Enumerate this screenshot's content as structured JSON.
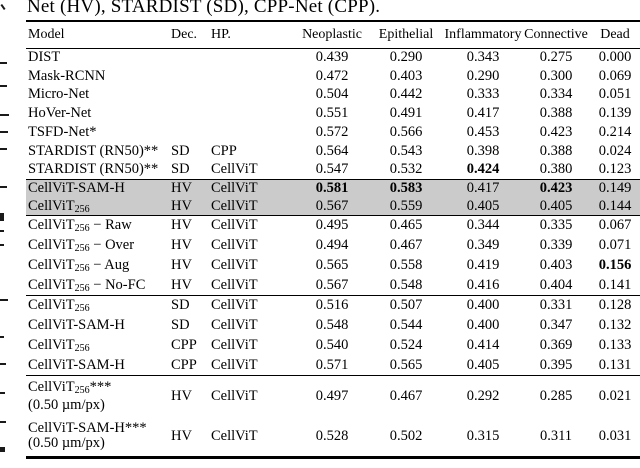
{
  "caption": "Net (HV), STARDIST (SD), CPP-Net (CPP).",
  "colors": {
    "background": "#ffffff",
    "text": "#000000",
    "rule": "#000000",
    "highlight_row": "#cbcbcb"
  },
  "table": {
    "columns": [
      "Model",
      "Dec.",
      "HP.",
      "Neoplastic",
      "Epithelial",
      "Inflammatory",
      "Connective",
      "Dead"
    ],
    "groups": [
      {
        "rows": [
          {
            "model": "DIST",
            "dec": "",
            "hp": "",
            "values": [
              "0.439",
              "0.290",
              "0.343",
              "0.275",
              "0.000"
            ],
            "bold": []
          },
          {
            "model": "Mask-RCNN",
            "dec": "",
            "hp": "",
            "values": [
              "0.472",
              "0.403",
              "0.290",
              "0.300",
              "0.069"
            ],
            "bold": []
          },
          {
            "model": "Micro-Net",
            "dec": "",
            "hp": "",
            "values": [
              "0.504",
              "0.442",
              "0.333",
              "0.334",
              "0.051"
            ],
            "bold": []
          },
          {
            "model": "HoVer-Net",
            "dec": "",
            "hp": "",
            "values": [
              "0.551",
              "0.491",
              "0.417",
              "0.388",
              "0.139"
            ],
            "bold": []
          },
          {
            "model": "TSFD-Net*",
            "dec": "",
            "hp": "",
            "values": [
              "0.572",
              "0.566",
              "0.453",
              "0.423",
              "0.214"
            ],
            "bold": []
          },
          {
            "model": "STARDIST (RN50)**",
            "dec": "SD",
            "hp": "CPP",
            "values": [
              "0.564",
              "0.543",
              "0.398",
              "0.388",
              "0.024"
            ],
            "bold": []
          },
          {
            "model": "STARDIST (RN50)**",
            "dec": "SD",
            "hp": "CellViT",
            "values": [
              "0.547",
              "0.532",
              "0.424",
              "0.380",
              "0.123"
            ],
            "bold": [
              2
            ]
          }
        ]
      },
      {
        "highlight": true,
        "rows": [
          {
            "model": "CellViT-SAM-H",
            "dec": "HV",
            "hp": "CellViT",
            "values": [
              "0.581",
              "0.583",
              "0.417",
              "0.423",
              "0.149"
            ],
            "bold": [
              0,
              1,
              3
            ]
          },
          {
            "model": "CellViT~256~",
            "dec": "HV",
            "hp": "CellViT",
            "values": [
              "0.567",
              "0.559",
              "0.405",
              "0.405",
              "0.144"
            ],
            "bold": []
          }
        ]
      },
      {
        "rows": [
          {
            "model": "CellViT~256~ − Raw",
            "dec": "HV",
            "hp": "CellViT",
            "values": [
              "0.495",
              "0.465",
              "0.344",
              "0.335",
              "0.067"
            ],
            "bold": []
          },
          {
            "model": "CellViT~256~ − Over",
            "dec": "HV",
            "hp": "CellViT",
            "values": [
              "0.494",
              "0.467",
              "0.349",
              "0.339",
              "0.071"
            ],
            "bold": []
          },
          {
            "model": "CellViT~256~ − Aug",
            "dec": "HV",
            "hp": "CellViT",
            "values": [
              "0.565",
              "0.558",
              "0.419",
              "0.403",
              "0.156"
            ],
            "bold": [
              4
            ]
          },
          {
            "model": "CellViT~256~ − No-FC",
            "dec": "HV",
            "hp": "CellViT",
            "values": [
              "0.567",
              "0.548",
              "0.416",
              "0.404",
              "0.141"
            ],
            "bold": []
          }
        ]
      },
      {
        "rows": [
          {
            "model": "CellViT~256~",
            "dec": "SD",
            "hp": "CellViT",
            "values": [
              "0.516",
              "0.507",
              "0.400",
              "0.331",
              "0.128"
            ],
            "bold": []
          },
          {
            "model": "CellViT-SAM-H",
            "dec": "SD",
            "hp": "CellViT",
            "values": [
              "0.548",
              "0.544",
              "0.400",
              "0.347",
              "0.132"
            ],
            "bold": []
          },
          {
            "model": "CellViT~256~",
            "dec": "CPP",
            "hp": "CellViT",
            "values": [
              "0.540",
              "0.524",
              "0.414",
              "0.369",
              "0.133"
            ],
            "bold": []
          },
          {
            "model": "CellViT-SAM-H",
            "dec": "CPP",
            "hp": "CellViT",
            "values": [
              "0.571",
              "0.565",
              "0.405",
              "0.395",
              "0.131"
            ],
            "bold": []
          }
        ]
      },
      {
        "rows": [
          {
            "model": "CellViT~256~***",
            "model2": "(0.50 µm/px)",
            "dec": "HV",
            "hp": "CellViT",
            "values": [
              "0.497",
              "0.467",
              "0.292",
              "0.285",
              "0.021"
            ],
            "bold": []
          },
          {
            "model": "CellViT-SAM-H***",
            "model2": "(0.50 µm/px)",
            "dec": "HV",
            "hp": "CellViT",
            "values": [
              "0.528",
              "0.502",
              "0.315",
              "0.311",
              "0.031"
            ],
            "bold": []
          }
        ]
      }
    ]
  }
}
